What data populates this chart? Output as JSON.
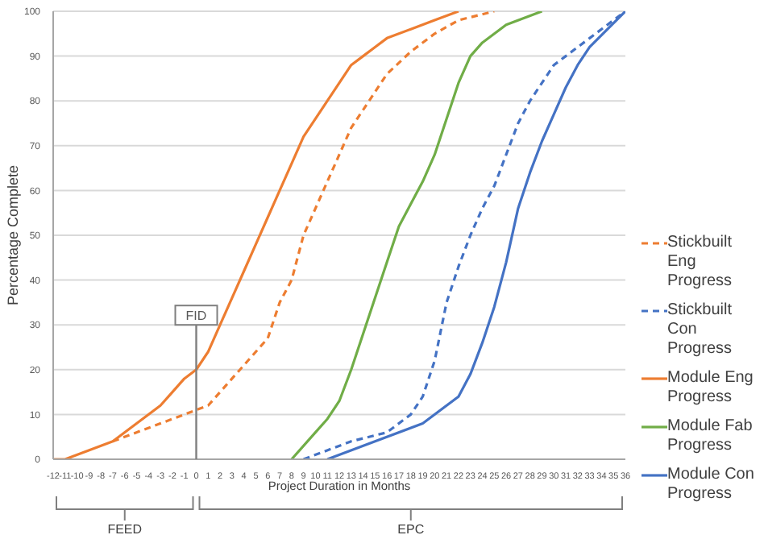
{
  "chart_data": {
    "type": "line",
    "ylabel": "Percentage Complete",
    "xlabel": "Project Duration in Months",
    "xlim": [
      -12,
      36
    ],
    "xticks": [
      -12,
      -11,
      -10,
      -9,
      -8,
      -7,
      -6,
      -5,
      -4,
      -3,
      -2,
      -1,
      0,
      1,
      2,
      3,
      4,
      5,
      6,
      7,
      8,
      9,
      10,
      11,
      12,
      13,
      14,
      15,
      16,
      17,
      18,
      19,
      20,
      21,
      22,
      23,
      24,
      25,
      26,
      27,
      28,
      29,
      30,
      31,
      32,
      33,
      34,
      35,
      36
    ],
    "ylim": [
      0,
      100
    ],
    "yticks": [
      0,
      10,
      20,
      30,
      40,
      50,
      60,
      70,
      80,
      90,
      100
    ],
    "grid": "y",
    "legend": "right",
    "marker": "none",
    "series": [
      {
        "name": "Stickbuilt Eng Progress",
        "color": "#ed7d31",
        "line_style": "dashed",
        "x": [
          -7,
          -3,
          0,
          1,
          3,
          6,
          7,
          8,
          9,
          11,
          12,
          13,
          14,
          16,
          18,
          20,
          22,
          25
        ],
        "values": [
          4,
          8,
          11,
          12,
          18,
          27,
          35,
          40,
          50,
          62,
          68,
          74,
          78,
          86,
          91,
          95,
          98,
          100
        ]
      },
      {
        "name": "Stickbuilt Con Progress",
        "color": "#4472c4",
        "line_style": "dashed",
        "x": [
          9,
          13,
          16,
          18,
          19,
          20,
          21,
          22,
          23,
          24,
          25,
          26,
          27,
          28,
          29,
          30,
          31,
          33,
          36
        ],
        "values": [
          0,
          4,
          6,
          10,
          14,
          22,
          35,
          43,
          50,
          56,
          61,
          68,
          75,
          80,
          84,
          88,
          90,
          94,
          100
        ]
      },
      {
        "name": "Module Eng Progress",
        "color": "#ed7d31",
        "line_style": "solid",
        "x": [
          -12,
          -11,
          -7,
          -5,
          -3,
          -2,
          -1,
          0,
          1,
          2,
          3,
          4,
          5,
          6,
          7,
          8,
          9,
          10,
          11,
          12,
          13,
          14,
          15,
          16,
          18,
          20,
          22
        ],
        "values": [
          0,
          0,
          4,
          8,
          12,
          15,
          18,
          20,
          24,
          30,
          36,
          42,
          48,
          54,
          60,
          66,
          72,
          76,
          80,
          84,
          88,
          90,
          92,
          94,
          96,
          98,
          100
        ]
      },
      {
        "name": "Module Fab Progress",
        "color": "#70ad47",
        "line_style": "solid",
        "x": [
          8,
          10,
          11,
          12,
          13,
          14,
          15,
          16,
          17,
          18,
          19,
          20,
          21,
          22,
          23,
          24,
          26,
          29
        ],
        "values": [
          0,
          6,
          9,
          13,
          20,
          28,
          36,
          44,
          52,
          57,
          62,
          68,
          76,
          84,
          90,
          93,
          97,
          100
        ]
      },
      {
        "name": "Module Con Progress",
        "color": "#4472c4",
        "line_style": "solid",
        "x": [
          11,
          15,
          19,
          22,
          23,
          24,
          25,
          26,
          27,
          28,
          29,
          30,
          31,
          32,
          33,
          36
        ],
        "values": [
          0,
          4,
          8,
          14,
          19,
          26,
          34,
          44,
          56,
          64,
          71,
          77,
          83,
          88,
          92,
          100
        ]
      }
    ],
    "ref_lines": [
      {
        "axis": "x",
        "value": 0,
        "label": "FID",
        "color": "#7f7f7f"
      }
    ],
    "annotations": [
      "FEED",
      "EPC"
    ]
  }
}
